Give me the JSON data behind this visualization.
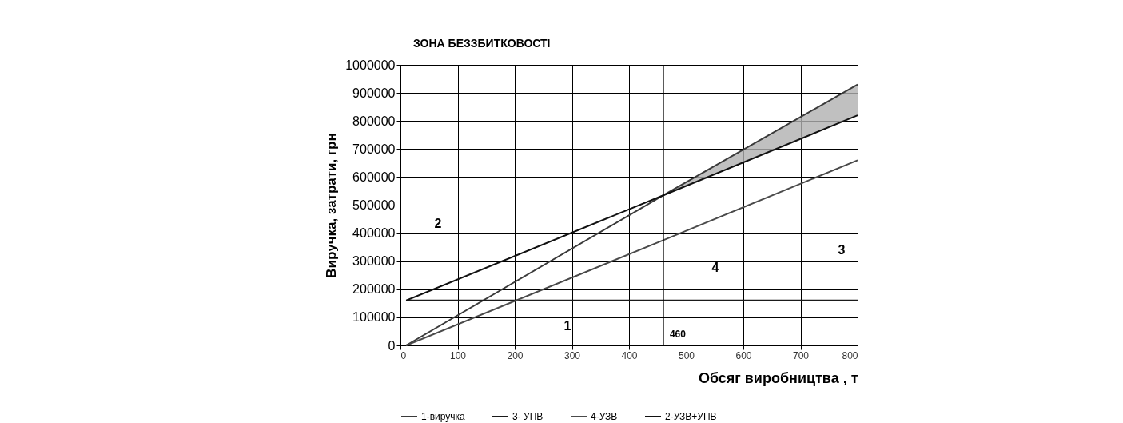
{
  "chart_data": {
    "type": "line",
    "xlabel": "Обсяг виробництва , т",
    "ylabel": "Виручка, затрати, грн",
    "x": [
      10,
      460,
      800
    ],
    "series": [
      {
        "name": "1-виручка",
        "color": "#3a3a3a",
        "values": [
          0,
          535000,
          930000
        ],
        "lower": [
          null,
          535000,
          820000
        ],
        "upper": [
          null,
          535000,
          930000
        ]
      },
      {
        "name": "3- УПВ",
        "color": "#1a1a1a",
        "values": [
          160000,
          160000,
          160000
        ]
      },
      {
        "name": "4-УЗВ",
        "color": "#4a4a4a",
        "values": [
          0,
          375000,
          660000
        ]
      },
      {
        "name": "2-УЗВ+УПВ",
        "color": "#111111",
        "values": [
          160000,
          535000,
          820000
        ]
      }
    ],
    "xlim": [
      0,
      800
    ],
    "xticks": [
      0,
      100,
      200,
      300,
      400,
      500,
      600,
      700,
      800
    ],
    "ylim": [
      0,
      1000000
    ],
    "yticks": [
      0,
      100000,
      200000,
      300000,
      400000,
      500000,
      600000,
      700000,
      800000,
      900000,
      1000000
    ],
    "grid": true,
    "legend": "bottom",
    "ref_lines": [
      {
        "axis": "x",
        "value": 460,
        "label": "460"
      }
    ],
    "annotations": [
      "ЗОНА БЕЗЗБИТКОВОСТІ",
      "1",
      "2",
      "3",
      "4"
    ]
  }
}
